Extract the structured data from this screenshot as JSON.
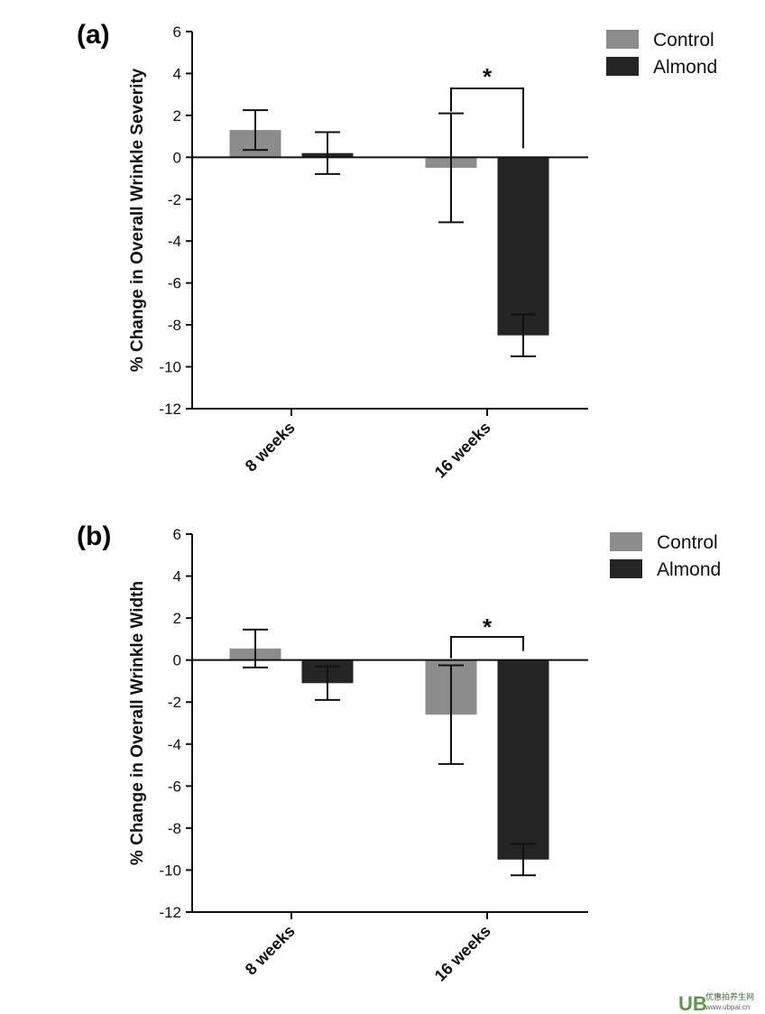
{
  "chart_data": [
    {
      "panel": "(a)",
      "type": "bar",
      "ylabel": "% Change in Overall Wrinkle Severity",
      "ylim": [
        -12,
        6
      ],
      "yticks": [
        6,
        4,
        2,
        0,
        -2,
        -4,
        -6,
        -8,
        -10,
        -12
      ],
      "categories": [
        "8 weeks",
        "16 weeks"
      ],
      "series": [
        {
          "name": "Control",
          "color": "#8c8c8c",
          "values": [
            1.3,
            -0.5
          ],
          "error": [
            0.95,
            2.6
          ]
        },
        {
          "name": "Almond",
          "color": "#252525",
          "values": [
            0.2,
            -8.5
          ],
          "error": [
            1.0,
            1.0
          ]
        }
      ],
      "significance": {
        "category": "16 weeks",
        "label": "*"
      },
      "legend": "top-right",
      "grid": false
    },
    {
      "panel": "(b)",
      "type": "bar",
      "ylabel": "% Change in Overall Wrinkle Width",
      "ylim": [
        -12,
        6
      ],
      "yticks": [
        6,
        4,
        2,
        0,
        -2,
        -4,
        -6,
        -8,
        -10,
        -12
      ],
      "categories": [
        "8 weeks",
        "16 weeks"
      ],
      "series": [
        {
          "name": "Control",
          "color": "#8c8c8c",
          "values": [
            0.55,
            -2.6
          ],
          "error": [
            0.9,
            2.35
          ]
        },
        {
          "name": "Almond",
          "color": "#252525",
          "values": [
            -1.1,
            -9.5
          ],
          "error": [
            0.8,
            0.75
          ]
        }
      ],
      "significance": {
        "category": "16 weeks",
        "label": "*"
      },
      "legend": "top-right",
      "grid": false
    }
  ],
  "watermark": {
    "logo": "UB",
    "text_cn": "优惠拍养生网",
    "url": "www.ubpai.cn",
    "color": "#4a8a3a"
  }
}
